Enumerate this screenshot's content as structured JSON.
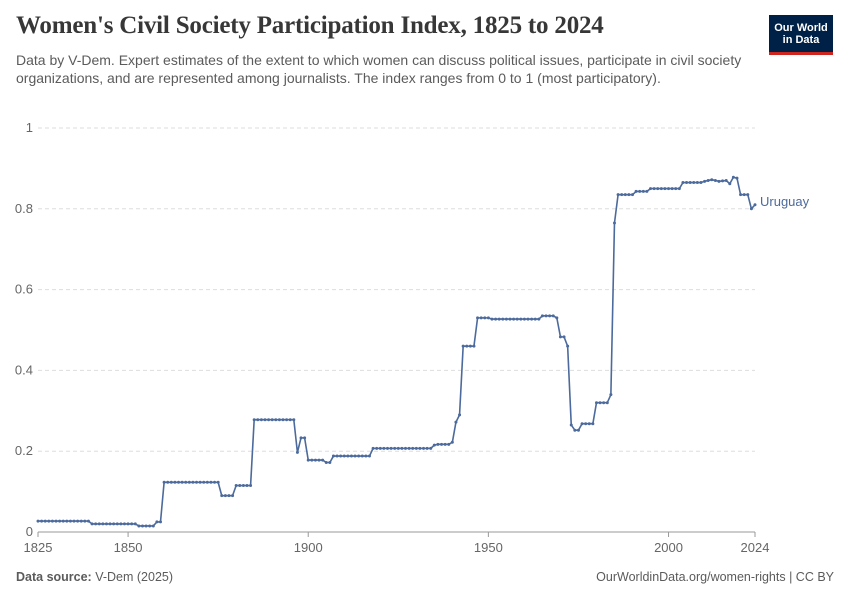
{
  "header": {
    "title": "Women's Civil Society Participation Index, 1825 to 2024",
    "subtitle": "Data by V-Dem. Expert estimates of the extent to which women can discuss political issues, participate in civil society organizations, and are represented among journalists. The index ranges from 0 to 1 (most participatory)."
  },
  "logo": {
    "line1": "Our World",
    "line2": "in Data",
    "bg_color": "#002147",
    "accent_color": "#ce261e"
  },
  "footer": {
    "source_label": "Data source:",
    "source_value": "V-Dem (2025)",
    "right_text": "OurWorldinData.org/women-rights | CC BY"
  },
  "chart_data": {
    "type": "line",
    "title": "Women's Civil Society Participation Index, 1825 to 2024",
    "xlabel": "",
    "ylabel": "",
    "xlim": [
      1825,
      2024
    ],
    "ylim": [
      0,
      1
    ],
    "x_ticks": [
      "1825",
      "1850",
      "1900",
      "1950",
      "2000",
      "2024"
    ],
    "y_ticks": [
      "0",
      "0.2",
      "0.4",
      "0.6",
      "0.8",
      "1"
    ],
    "grid": true,
    "series": [
      {
        "name": "Uruguay",
        "color": "#4c6a9c",
        "points": [
          [
            1825,
            0.027
          ],
          [
            1839,
            0.027
          ],
          [
            1840,
            0.02
          ],
          [
            1852,
            0.02
          ],
          [
            1853,
            0.015
          ],
          [
            1857,
            0.015
          ],
          [
            1858,
            0.025
          ],
          [
            1859,
            0.025
          ],
          [
            1860,
            0.123
          ],
          [
            1875,
            0.123
          ],
          [
            1876,
            0.09
          ],
          [
            1879,
            0.09
          ],
          [
            1880,
            0.115
          ],
          [
            1884,
            0.115
          ],
          [
            1885,
            0.278
          ],
          [
            1896,
            0.278
          ],
          [
            1897,
            0.197
          ],
          [
            1898,
            0.233
          ],
          [
            1899,
            0.233
          ],
          [
            1900,
            0.178
          ],
          [
            1904,
            0.178
          ],
          [
            1905,
            0.172
          ],
          [
            1906,
            0.172
          ],
          [
            1907,
            0.188
          ],
          [
            1917,
            0.188
          ],
          [
            1918,
            0.207
          ],
          [
            1934,
            0.207
          ],
          [
            1935,
            0.215
          ],
          [
            1936,
            0.217
          ],
          [
            1939,
            0.217
          ],
          [
            1940,
            0.222
          ],
          [
            1941,
            0.272
          ],
          [
            1942,
            0.29
          ],
          [
            1943,
            0.46
          ],
          [
            1946,
            0.46
          ],
          [
            1947,
            0.53
          ],
          [
            1950,
            0.53
          ],
          [
            1951,
            0.527
          ],
          [
            1964,
            0.527
          ],
          [
            1965,
            0.535
          ],
          [
            1968,
            0.535
          ],
          [
            1969,
            0.53
          ],
          [
            1970,
            0.483
          ],
          [
            1971,
            0.483
          ],
          [
            1972,
            0.46
          ],
          [
            1973,
            0.265
          ],
          [
            1974,
            0.252
          ],
          [
            1975,
            0.252
          ],
          [
            1976,
            0.268
          ],
          [
            1979,
            0.268
          ],
          [
            1980,
            0.32
          ],
          [
            1983,
            0.32
          ],
          [
            1984,
            0.34
          ],
          [
            1985,
            0.765
          ],
          [
            1986,
            0.835
          ],
          [
            1990,
            0.835
          ],
          [
            1991,
            0.843
          ],
          [
            1994,
            0.843
          ],
          [
            1995,
            0.85
          ],
          [
            2003,
            0.85
          ],
          [
            2004,
            0.865
          ],
          [
            2009,
            0.865
          ],
          [
            2010,
            0.868
          ],
          [
            2012,
            0.872
          ],
          [
            2014,
            0.868
          ],
          [
            2016,
            0.87
          ],
          [
            2017,
            0.862
          ],
          [
            2018,
            0.878
          ],
          [
            2019,
            0.876
          ],
          [
            2020,
            0.835
          ],
          [
            2022,
            0.835
          ],
          [
            2023,
            0.8
          ],
          [
            2024,
            0.81
          ]
        ]
      }
    ]
  }
}
